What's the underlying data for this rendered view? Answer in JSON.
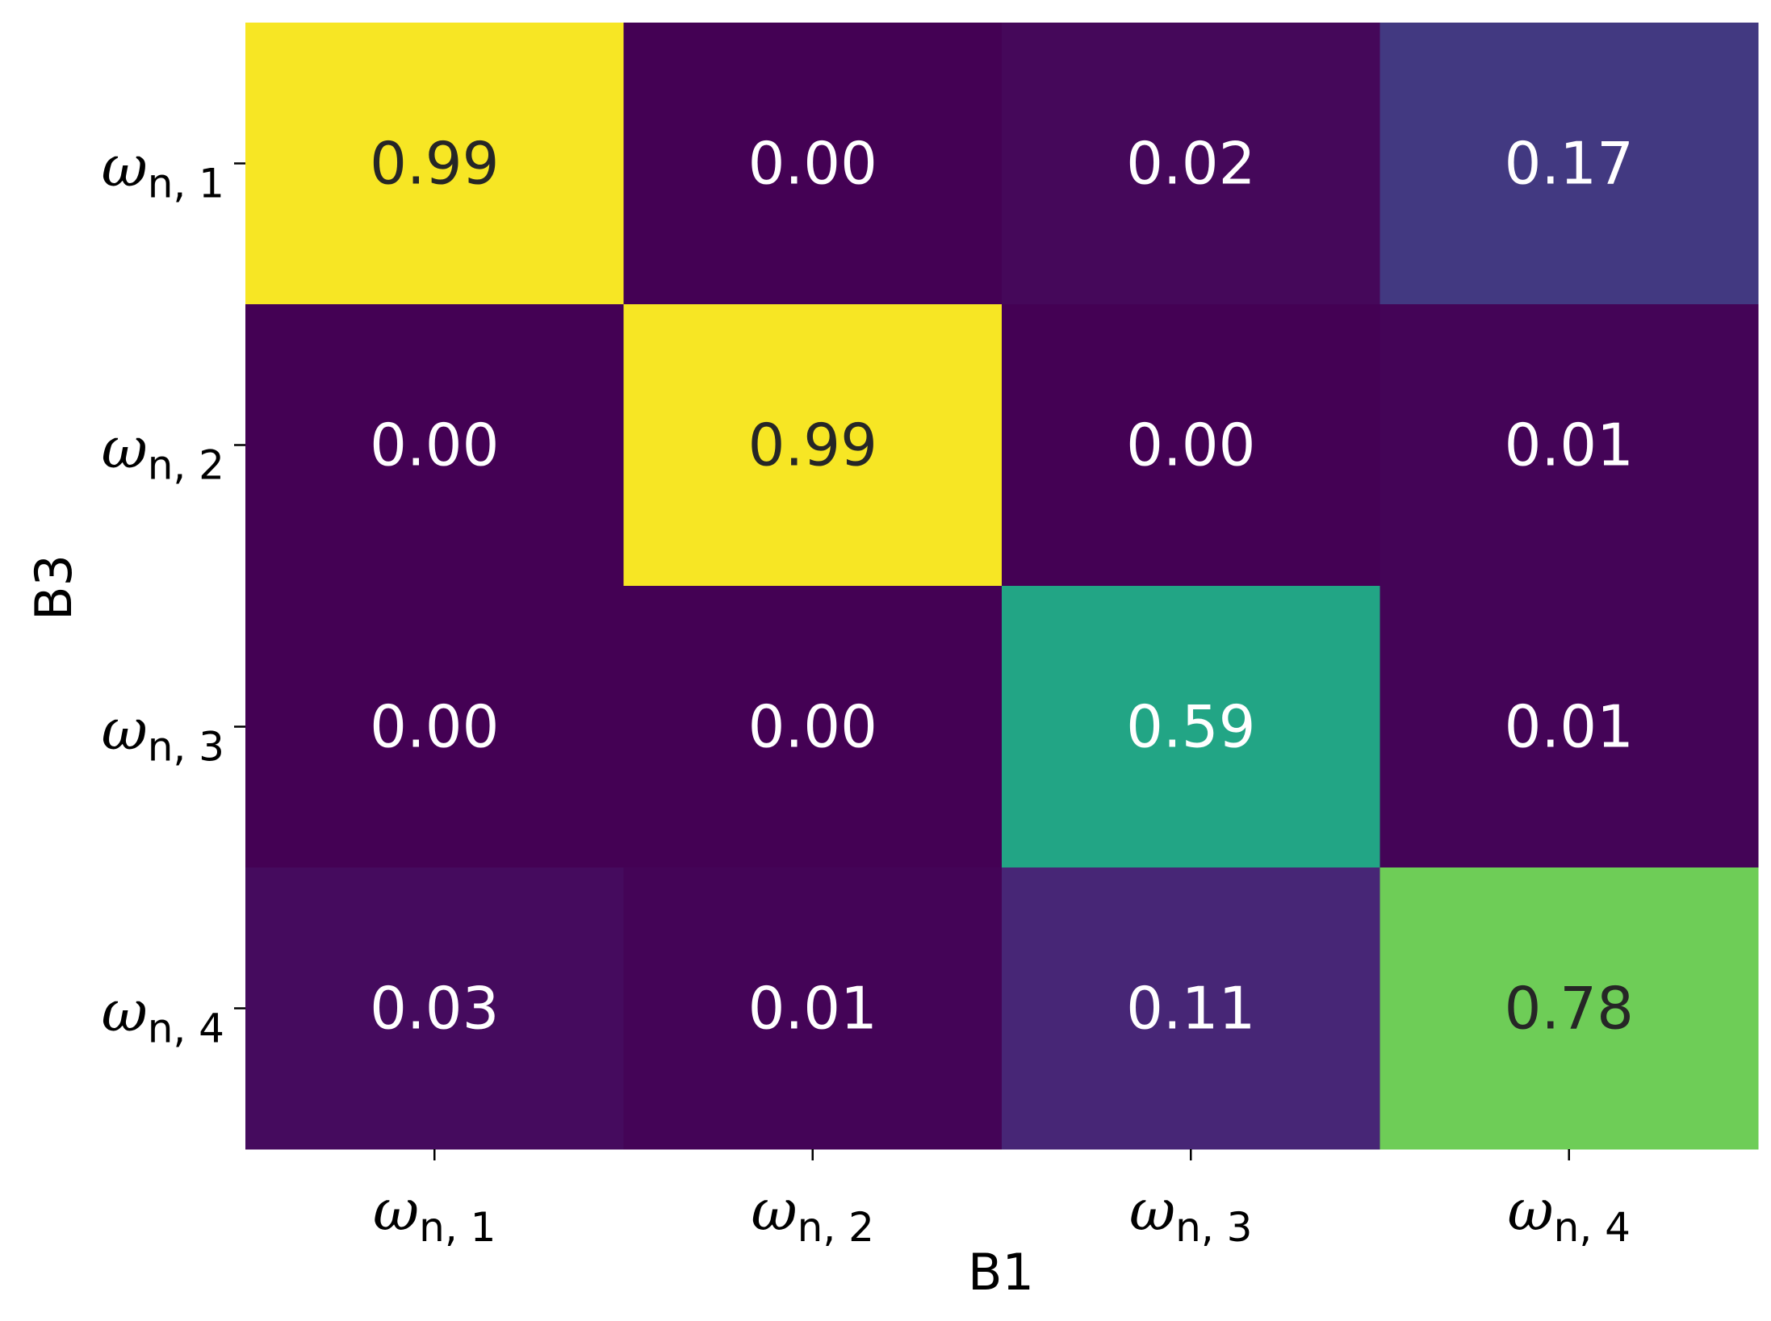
{
  "chart_data": {
    "type": "heatmap",
    "xlabel": "B1",
    "ylabel": "B3",
    "x_categories": [
      {
        "symbol": "ω",
        "sub": "n, 1"
      },
      {
        "symbol": "ω",
        "sub": "n, 2"
      },
      {
        "symbol": "ω",
        "sub": "n, 3"
      },
      {
        "symbol": "ω",
        "sub": "n, 4"
      }
    ],
    "y_categories": [
      {
        "symbol": "ω",
        "sub": "n, 1"
      },
      {
        "symbol": "ω",
        "sub": "n, 2"
      },
      {
        "symbol": "ω",
        "sub": "n, 3"
      },
      {
        "symbol": "ω",
        "sub": "n, 4"
      }
    ],
    "values": [
      [
        0.99,
        0.0,
        0.02,
        0.17
      ],
      [
        0.0,
        0.99,
        0.0,
        0.01
      ],
      [
        0.0,
        0.0,
        0.59,
        0.01
      ],
      [
        0.03,
        0.01,
        0.11,
        0.78
      ]
    ],
    "value_labels": [
      [
        "0.99",
        "0.00",
        "0.02",
        "0.17"
      ],
      [
        "0.00",
        "0.99",
        "0.00",
        "0.01"
      ],
      [
        "0.00",
        "0.00",
        "0.59",
        "0.01"
      ],
      [
        "0.03",
        "0.01",
        "0.11",
        "0.78"
      ]
    ],
    "colormap": "viridis",
    "value_range": [
      0,
      1
    ],
    "colorbar": false,
    "dark_text_color": "#262626",
    "light_text_color": "#ffffff"
  }
}
